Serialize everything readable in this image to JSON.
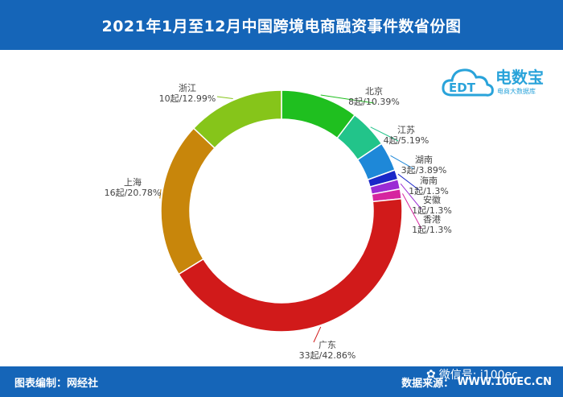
{
  "header": {
    "title": "2021年1月至12月中国跨境电商融资事件数省份图"
  },
  "logo": {
    "brand": "电数宝",
    "sub": "电商大数据库",
    "mark": "EDT"
  },
  "footer": {
    "left": "图表编制：网经社",
    "source_label": "数据来源：",
    "source_value": "WWW.100EC.CN",
    "wechat": "微信号: i100ec"
  },
  "colors": {
    "header_bg": "#1565b8",
    "label_text": "#444444",
    "leader": "#999999"
  },
  "chart_data": {
    "type": "pie",
    "donut": true,
    "start": "top",
    "direction": "clockwise",
    "unit": "起",
    "total": 77,
    "slices": [
      {
        "name": "北京",
        "value": 8,
        "percent": 10.39,
        "label": "8起/10.39%",
        "color": "#1fbf1f"
      },
      {
        "name": "江苏",
        "value": 4,
        "percent": 5.19,
        "label": "4起/5.19%",
        "color": "#22c48a"
      },
      {
        "name": "湖南",
        "value": 3,
        "percent": 3.89,
        "label": "3起/3.89%",
        "color": "#1e88d8"
      },
      {
        "name": "海南",
        "value": 1,
        "percent": 1.3,
        "label": "1起/1.3%",
        "color": "#1a27c8"
      },
      {
        "name": "安徽",
        "value": 1,
        "percent": 1.3,
        "label": "1起/1.3%",
        "color": "#9b2bd4"
      },
      {
        "name": "香港",
        "value": 1,
        "percent": 1.3,
        "label": "1起/1.3%",
        "color": "#d6259f"
      },
      {
        "name": "广东",
        "value": 33,
        "percent": 42.86,
        "label": "33起/42.86%",
        "color": "#d11a1a"
      },
      {
        "name": "上海",
        "value": 16,
        "percent": 20.78,
        "label": "16起/20.78%",
        "color": "#c8860b"
      },
      {
        "name": "浙江",
        "value": 10,
        "percent": 12.99,
        "label": "10起/12.99%",
        "color": "#86c51a"
      }
    ]
  }
}
